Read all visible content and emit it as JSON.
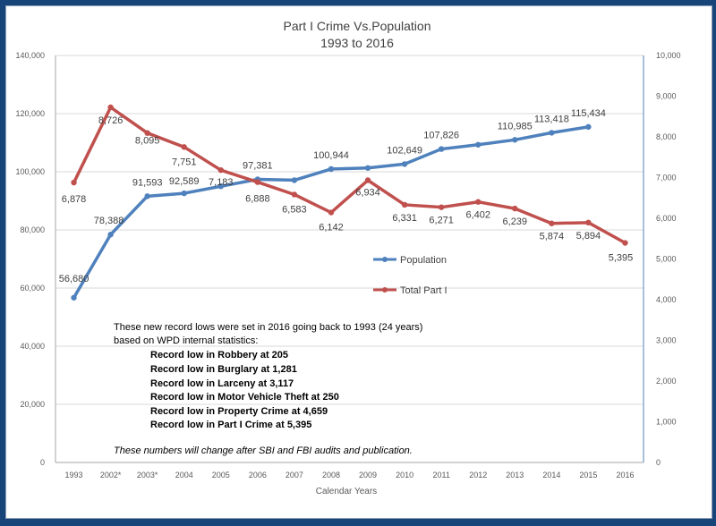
{
  "chart_data": {
    "type": "line",
    "title": "Part I Crime Vs.Population",
    "subtitle": "1993 to 2016",
    "xlabel": "Calendar Years",
    "categories": [
      "1993",
      "2002*",
      "2003*",
      "2004",
      "2005",
      "2006",
      "2007",
      "2008",
      "2009",
      "2010",
      "2011",
      "2012",
      "2013",
      "2014",
      "2015",
      "2016"
    ],
    "y_left": {
      "range": [
        0,
        140000
      ],
      "ticks": [
        "0",
        "20,000",
        "40,000",
        "60,000",
        "80,000",
        "100,000",
        "120,000",
        "140,000"
      ]
    },
    "y_right": {
      "range": [
        0,
        10000
      ],
      "ticks": [
        "0",
        "1,000",
        "2,000",
        "3,000",
        "4,000",
        "5,000",
        "6,000",
        "7,000",
        "8,000",
        "9,000",
        "10,000"
      ]
    },
    "grid": true,
    "legend_position": "center-right",
    "series": [
      {
        "name": "Population",
        "axis": "left",
        "color": "#4f81bd",
        "values": [
          56680,
          78388,
          91593,
          92589,
          95000,
          97381,
          97100,
          100944,
          101300,
          102649,
          107826,
          109300,
          110985,
          113418,
          115434,
          null
        ],
        "labels": [
          "56,680",
          "78,388",
          "91,593",
          "92,589",
          "",
          "97,381",
          "",
          "100,944",
          "",
          "102,649",
          "107,826",
          "",
          "110,985",
          "113,418",
          "115,434",
          ""
        ]
      },
      {
        "name": "Total Part I",
        "axis": "right",
        "color": "#c0504d",
        "values": [
          6878,
          8726,
          8095,
          7751,
          7183,
          6888,
          6583,
          6142,
          6934,
          6331,
          6271,
          6402,
          6239,
          5874,
          5894,
          5395
        ],
        "labels": [
          "6,878",
          "8,726",
          "8,095",
          "7,751",
          "7,183",
          "6,888",
          "6,583",
          "6,142",
          "6,934",
          "6,331",
          "6,271",
          "6,402",
          "6,239",
          "5,874",
          "5,894",
          "5,395"
        ]
      }
    ]
  },
  "notes": {
    "intro1": "These new record lows were set in 2016  going back to 1993  (24 years)",
    "intro2": "based on WPD internal statistics:",
    "records": [
      "Record low in Robbery at 205",
      "Record low in Burglary at 1,281",
      "Record low in Larceny at 3,117",
      "Record low in Motor Vehicle Theft at 250",
      "Record low in Property Crime at 4,659",
      "Record low in Part I Crime at 5,395"
    ],
    "footer": "These numbers will change after SBI and FBI audits and publication."
  }
}
